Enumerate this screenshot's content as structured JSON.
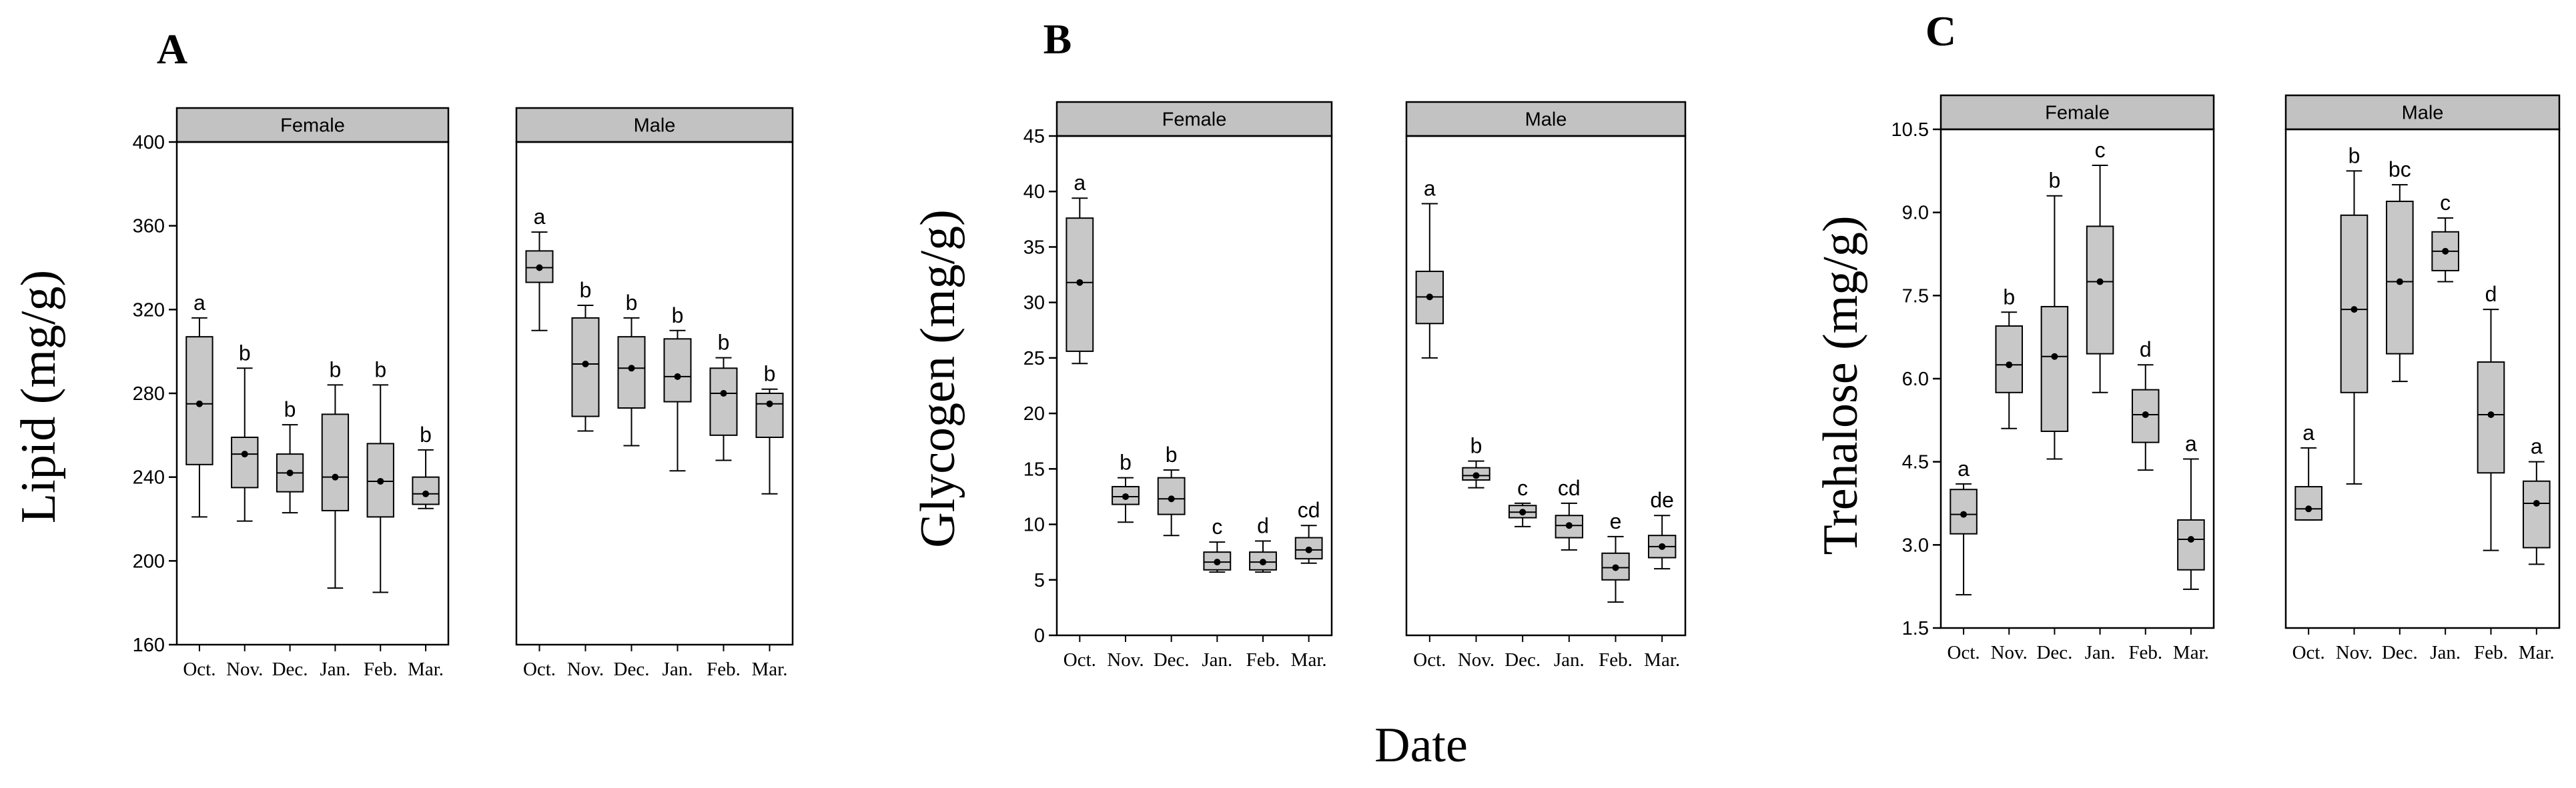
{
  "shared_xlabel": "Date",
  "chart_data": [
    {
      "type": "boxplot",
      "panel_label": "A",
      "ylabel": "Lipid (mg/g)",
      "ylim": [
        160,
        400
      ],
      "yticks": [
        "160",
        "200",
        "240",
        "280",
        "320",
        "360",
        "400"
      ],
      "categories": [
        "Oct.",
        "Nov.",
        "Dec.",
        "Jan.",
        "Feb.",
        "Mar."
      ],
      "facets": [
        {
          "name": "Female",
          "boxes": [
            {
              "min": 221,
              "q1": 246,
              "median": 275,
              "q3": 307,
              "max": 316,
              "letter": "a"
            },
            {
              "min": 219,
              "q1": 235,
              "median": 251,
              "q3": 259,
              "max": 292,
              "letter": "b"
            },
            {
              "min": 223,
              "q1": 233,
              "median": 242,
              "q3": 251,
              "max": 265,
              "letter": "b"
            },
            {
              "min": 187,
              "q1": 224,
              "median": 240,
              "q3": 270,
              "max": 284,
              "letter": "b"
            },
            {
              "min": 185,
              "q1": 221,
              "median": 238,
              "q3": 256,
              "max": 284,
              "letter": "b"
            },
            {
              "min": 225,
              "q1": 227,
              "median": 232,
              "q3": 240,
              "max": 253,
              "letter": "b"
            }
          ]
        },
        {
          "name": "Male",
          "boxes": [
            {
              "min": 310,
              "q1": 333,
              "median": 340,
              "q3": 348,
              "max": 357,
              "letter": "a"
            },
            {
              "min": 262,
              "q1": 269,
              "median": 294,
              "q3": 316,
              "max": 322,
              "letter": "b"
            },
            {
              "min": 255,
              "q1": 273,
              "median": 292,
              "q3": 307,
              "max": 316,
              "letter": "b"
            },
            {
              "min": 243,
              "q1": 276,
              "median": 288,
              "q3": 306,
              "max": 310,
              "letter": "b"
            },
            {
              "min": 248,
              "q1": 260,
              "median": 280,
              "q3": 292,
              "max": 297,
              "letter": "b"
            },
            {
              "min": 232,
              "q1": 259,
              "median": 275,
              "q3": 280,
              "max": 282,
              "letter": "b"
            }
          ]
        }
      ]
    },
    {
      "type": "boxplot",
      "panel_label": "B",
      "ylabel": "Glycogen (mg/g)",
      "ylim": [
        0,
        45
      ],
      "yticks": [
        "0",
        "5",
        "10",
        "15",
        "20",
        "25",
        "30",
        "35",
        "40",
        "45"
      ],
      "categories": [
        "Oct.",
        "Nov.",
        "Dec.",
        "Jan.",
        "Feb.",
        "Mar."
      ],
      "facets": [
        {
          "name": "Female",
          "boxes": [
            {
              "min": 24.5,
              "q1": 25.6,
              "median": 31.8,
              "q3": 37.6,
              "max": 39.4,
              "letter": "a"
            },
            {
              "min": 10.2,
              "q1": 11.8,
              "median": 12.5,
              "q3": 13.4,
              "max": 14.2,
              "letter": "b"
            },
            {
              "min": 9.0,
              "q1": 10.9,
              "median": 12.3,
              "q3": 14.2,
              "max": 14.9,
              "letter": "b"
            },
            {
              "min": 5.7,
              "q1": 5.9,
              "median": 6.6,
              "q3": 7.5,
              "max": 8.4,
              "letter": "c"
            },
            {
              "min": 5.7,
              "q1": 5.9,
              "median": 6.6,
              "q3": 7.5,
              "max": 8.5,
              "letter": "d"
            },
            {
              "min": 6.5,
              "q1": 6.9,
              "median": 7.7,
              "q3": 8.8,
              "max": 9.9,
              "letter": "cd"
            }
          ]
        },
        {
          "name": "Male",
          "boxes": [
            {
              "min": 25.0,
              "q1": 28.1,
              "median": 30.5,
              "q3": 32.8,
              "max": 38.9,
              "letter": "a"
            },
            {
              "min": 13.3,
              "q1": 14.0,
              "median": 14.4,
              "q3": 15.1,
              "max": 15.7,
              "letter": "b"
            },
            {
              "min": 9.8,
              "q1": 10.6,
              "median": 11.1,
              "q3": 11.7,
              "max": 11.9,
              "letter": "c"
            },
            {
              "min": 7.7,
              "q1": 8.8,
              "median": 9.9,
              "q3": 10.8,
              "max": 11.9,
              "letter": "cd"
            },
            {
              "min": 3.0,
              "q1": 5.0,
              "median": 6.1,
              "q3": 7.4,
              "max": 8.9,
              "letter": "e"
            },
            {
              "min": 6.0,
              "q1": 7.0,
              "median": 8.0,
              "q3": 9.0,
              "max": 10.8,
              "letter": "de"
            }
          ]
        }
      ]
    },
    {
      "type": "boxplot",
      "panel_label": "C",
      "ylabel": "Trehalose (mg/g)",
      "ylim": [
        1.5,
        10.5
      ],
      "yticks": [
        "1.5",
        "3.0",
        "4.5",
        "6.0",
        "7.5",
        "9.0",
        "10.5"
      ],
      "categories": [
        "Oct.",
        "Nov.",
        "Dec.",
        "Jan.",
        "Feb.",
        "Mar."
      ],
      "facets": [
        {
          "name": "Female",
          "boxes": [
            {
              "min": 2.1,
              "q1": 3.2,
              "median": 3.55,
              "q3": 4.0,
              "max": 4.1,
              "letter": "a"
            },
            {
              "min": 5.1,
              "q1": 5.75,
              "median": 6.25,
              "q3": 6.95,
              "max": 7.2,
              "letter": "b"
            },
            {
              "min": 4.55,
              "q1": 5.05,
              "median": 6.4,
              "q3": 7.3,
              "max": 9.3,
              "letter": "b"
            },
            {
              "min": 5.75,
              "q1": 6.45,
              "median": 7.75,
              "q3": 8.75,
              "max": 9.85,
              "letter": "c"
            },
            {
              "min": 4.35,
              "q1": 4.85,
              "median": 5.35,
              "q3": 5.8,
              "max": 6.25,
              "letter": "d"
            },
            {
              "min": 2.2,
              "q1": 2.55,
              "median": 3.1,
              "q3": 3.45,
              "max": 4.55,
              "letter": "a"
            }
          ]
        },
        {
          "name": "Male",
          "boxes": [
            {
              "min": 3.45,
              "q1": 3.45,
              "median": 3.65,
              "q3": 4.05,
              "max": 4.75,
              "letter": "a"
            },
            {
              "min": 4.1,
              "q1": 5.75,
              "median": 7.25,
              "q3": 8.95,
              "max": 9.75,
              "letter": "b"
            },
            {
              "min": 5.95,
              "q1": 6.45,
              "median": 7.75,
              "q3": 9.2,
              "max": 9.5,
              "letter": "bc"
            },
            {
              "min": 7.75,
              "q1": 7.95,
              "median": 8.3,
              "q3": 8.65,
              "max": 8.9,
              "letter": "c"
            },
            {
              "min": 2.9,
              "q1": 4.3,
              "median": 5.35,
              "q3": 6.3,
              "max": 7.25,
              "letter": "d"
            },
            {
              "min": 2.65,
              "q1": 2.95,
              "median": 3.75,
              "q3": 4.15,
              "max": 4.5,
              "letter": "a"
            }
          ]
        }
      ]
    }
  ],
  "colors": {
    "box_fill": "#c8c8c8",
    "strip_fill": "#c2c2c2",
    "stroke": "#000000",
    "background": "#ffffff"
  }
}
